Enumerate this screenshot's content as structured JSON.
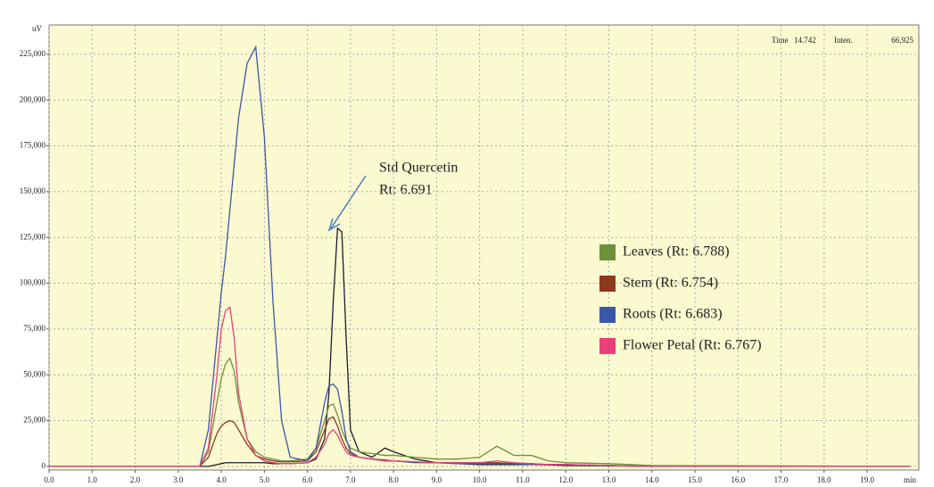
{
  "chart_data": {
    "type": "line",
    "y_label": "uV",
    "x_label": "min",
    "header": [
      "Time",
      "14.742",
      "Inten.",
      "66,925"
    ],
    "annotations": [
      "Std Quercetin",
      "Rt: 6.691"
    ],
    "x": [
      0,
      3.5,
      3.7,
      3.9,
      4.0,
      4.1,
      4.2,
      4.3,
      4.4,
      4.6,
      4.8,
      5.0,
      5.2,
      5.4,
      5.6,
      6.0,
      6.2,
      6.4,
      6.5,
      6.6,
      6.7,
      6.8,
      6.9,
      7.0,
      7.2,
      7.5,
      7.8,
      8.0,
      8.5,
      9.0,
      9.5,
      10.0,
      10.4,
      10.8,
      11.2,
      11.6,
      12.0,
      13.0,
      14.0,
      20.0
    ],
    "series": [
      {
        "color": "#1c1c30",
        "values": [
          0,
          0,
          0,
          1000,
          1500,
          2000,
          2000,
          2000,
          2000,
          2000,
          2000,
          2000,
          1500,
          1500,
          1500,
          2000,
          4000,
          15000,
          40000,
          90000,
          130000,
          128000,
          70000,
          20000,
          8000,
          5000,
          10000,
          8000,
          4000,
          2000,
          1500,
          1000,
          1000,
          1000,
          1000,
          800,
          500,
          300,
          0,
          0
        ]
      },
      {
        "name": "Leaves (Rt: 6.788)",
        "color": "#6f8f3a",
        "values": [
          0,
          0,
          8000,
          35000,
          48000,
          56000,
          59000,
          52000,
          35000,
          15000,
          8000,
          5000,
          4000,
          3000,
          3000,
          4000,
          10000,
          25000,
          33000,
          34000,
          28000,
          20000,
          14000,
          10000,
          8000,
          7000,
          6000,
          6000,
          5000,
          4000,
          4000,
          5000,
          11000,
          6000,
          6000,
          3000,
          2000,
          1500,
          500,
          0
        ]
      },
      {
        "name": "Stem (Rt: 6.754)",
        "color": "#8b3a1e",
        "values": [
          0,
          0,
          5000,
          18000,
          22000,
          24000,
          25000,
          24000,
          20000,
          12000,
          6000,
          4000,
          3000,
          2500,
          2500,
          3000,
          8000,
          20000,
          26000,
          27000,
          22000,
          15000,
          10000,
          7000,
          5000,
          4000,
          3500,
          3000,
          2500,
          2000,
          2000,
          2000,
          2000,
          1500,
          1500,
          1000,
          1000,
          500,
          0,
          0
        ]
      },
      {
        "name": "Roots (Rt: 6.683)",
        "color": "#3b57a8",
        "values": [
          0,
          0,
          20000,
          70000,
          95000,
          115000,
          140000,
          165000,
          190000,
          220000,
          229000,
          180000,
          90000,
          25000,
          5000,
          3000,
          10000,
          35000,
          44000,
          45000,
          42000,
          30000,
          15000,
          8000,
          5000,
          4000,
          3000,
          3000,
          2000,
          2000,
          1500,
          1500,
          1500,
          1500,
          1000,
          1000,
          1000,
          500,
          0,
          0
        ]
      },
      {
        "name": "Flower Petal (Rt: 6.767)",
        "color": "#e8407c",
        "values": [
          0,
          0,
          10000,
          50000,
          75000,
          85000,
          87000,
          70000,
          40000,
          15000,
          6000,
          3000,
          2000,
          1500,
          1500,
          2000,
          5000,
          12000,
          18000,
          20000,
          17000,
          12000,
          8000,
          6000,
          5000,
          4000,
          3000,
          3000,
          2500,
          2000,
          2000,
          2000,
          3000,
          2000,
          1500,
          1000,
          1000,
          500,
          0,
          0
        ]
      }
    ],
    "xlim": [
      0,
      20.2
    ],
    "ylim": [
      -2000,
      241000
    ],
    "xticks": [
      {
        "value": 0,
        "label": "0.0"
      },
      {
        "value": 1,
        "label": "1.0"
      },
      {
        "value": 2,
        "label": "2.0"
      },
      {
        "value": 3,
        "label": "3.0"
      },
      {
        "value": 4,
        "label": "4.0"
      },
      {
        "value": 5,
        "label": "5.0"
      },
      {
        "value": 6,
        "label": "6.0"
      },
      {
        "value": 7,
        "label": "7.0"
      },
      {
        "value": 8,
        "label": "8.0"
      },
      {
        "value": 9,
        "label": "9.0"
      },
      {
        "value": 10,
        "label": "10.0"
      },
      {
        "value": 11,
        "label": "11.0"
      },
      {
        "value": 12,
        "label": "12.0"
      },
      {
        "value": 13,
        "label": "13.0"
      },
      {
        "value": 14,
        "label": "14.0"
      },
      {
        "value": 15,
        "label": "15.0"
      },
      {
        "value": 16,
        "label": "16.0"
      },
      {
        "value": 17,
        "label": "17.0"
      },
      {
        "value": 18,
        "label": "18.0"
      },
      {
        "value": 19,
        "label": "19.0"
      }
    ],
    "yticks": [
      0,
      {
        "value": 25000,
        "label": "25,000"
      },
      {
        "value": 50000,
        "label": "50,000"
      },
      {
        "value": 75000,
        "label": "75,000"
      },
      {
        "value": 100000,
        "label": "100,000"
      },
      {
        "value": 125000,
        "label": "125,000"
      },
      {
        "value": 150000,
        "label": "150,000"
      },
      {
        "value": 175000,
        "label": "175,000"
      },
      {
        "value": 200000,
        "label": "200,000"
      },
      {
        "value": 225000,
        "label": "225,000"
      }
    ],
    "grid": true,
    "background": "#fbf9d0"
  }
}
